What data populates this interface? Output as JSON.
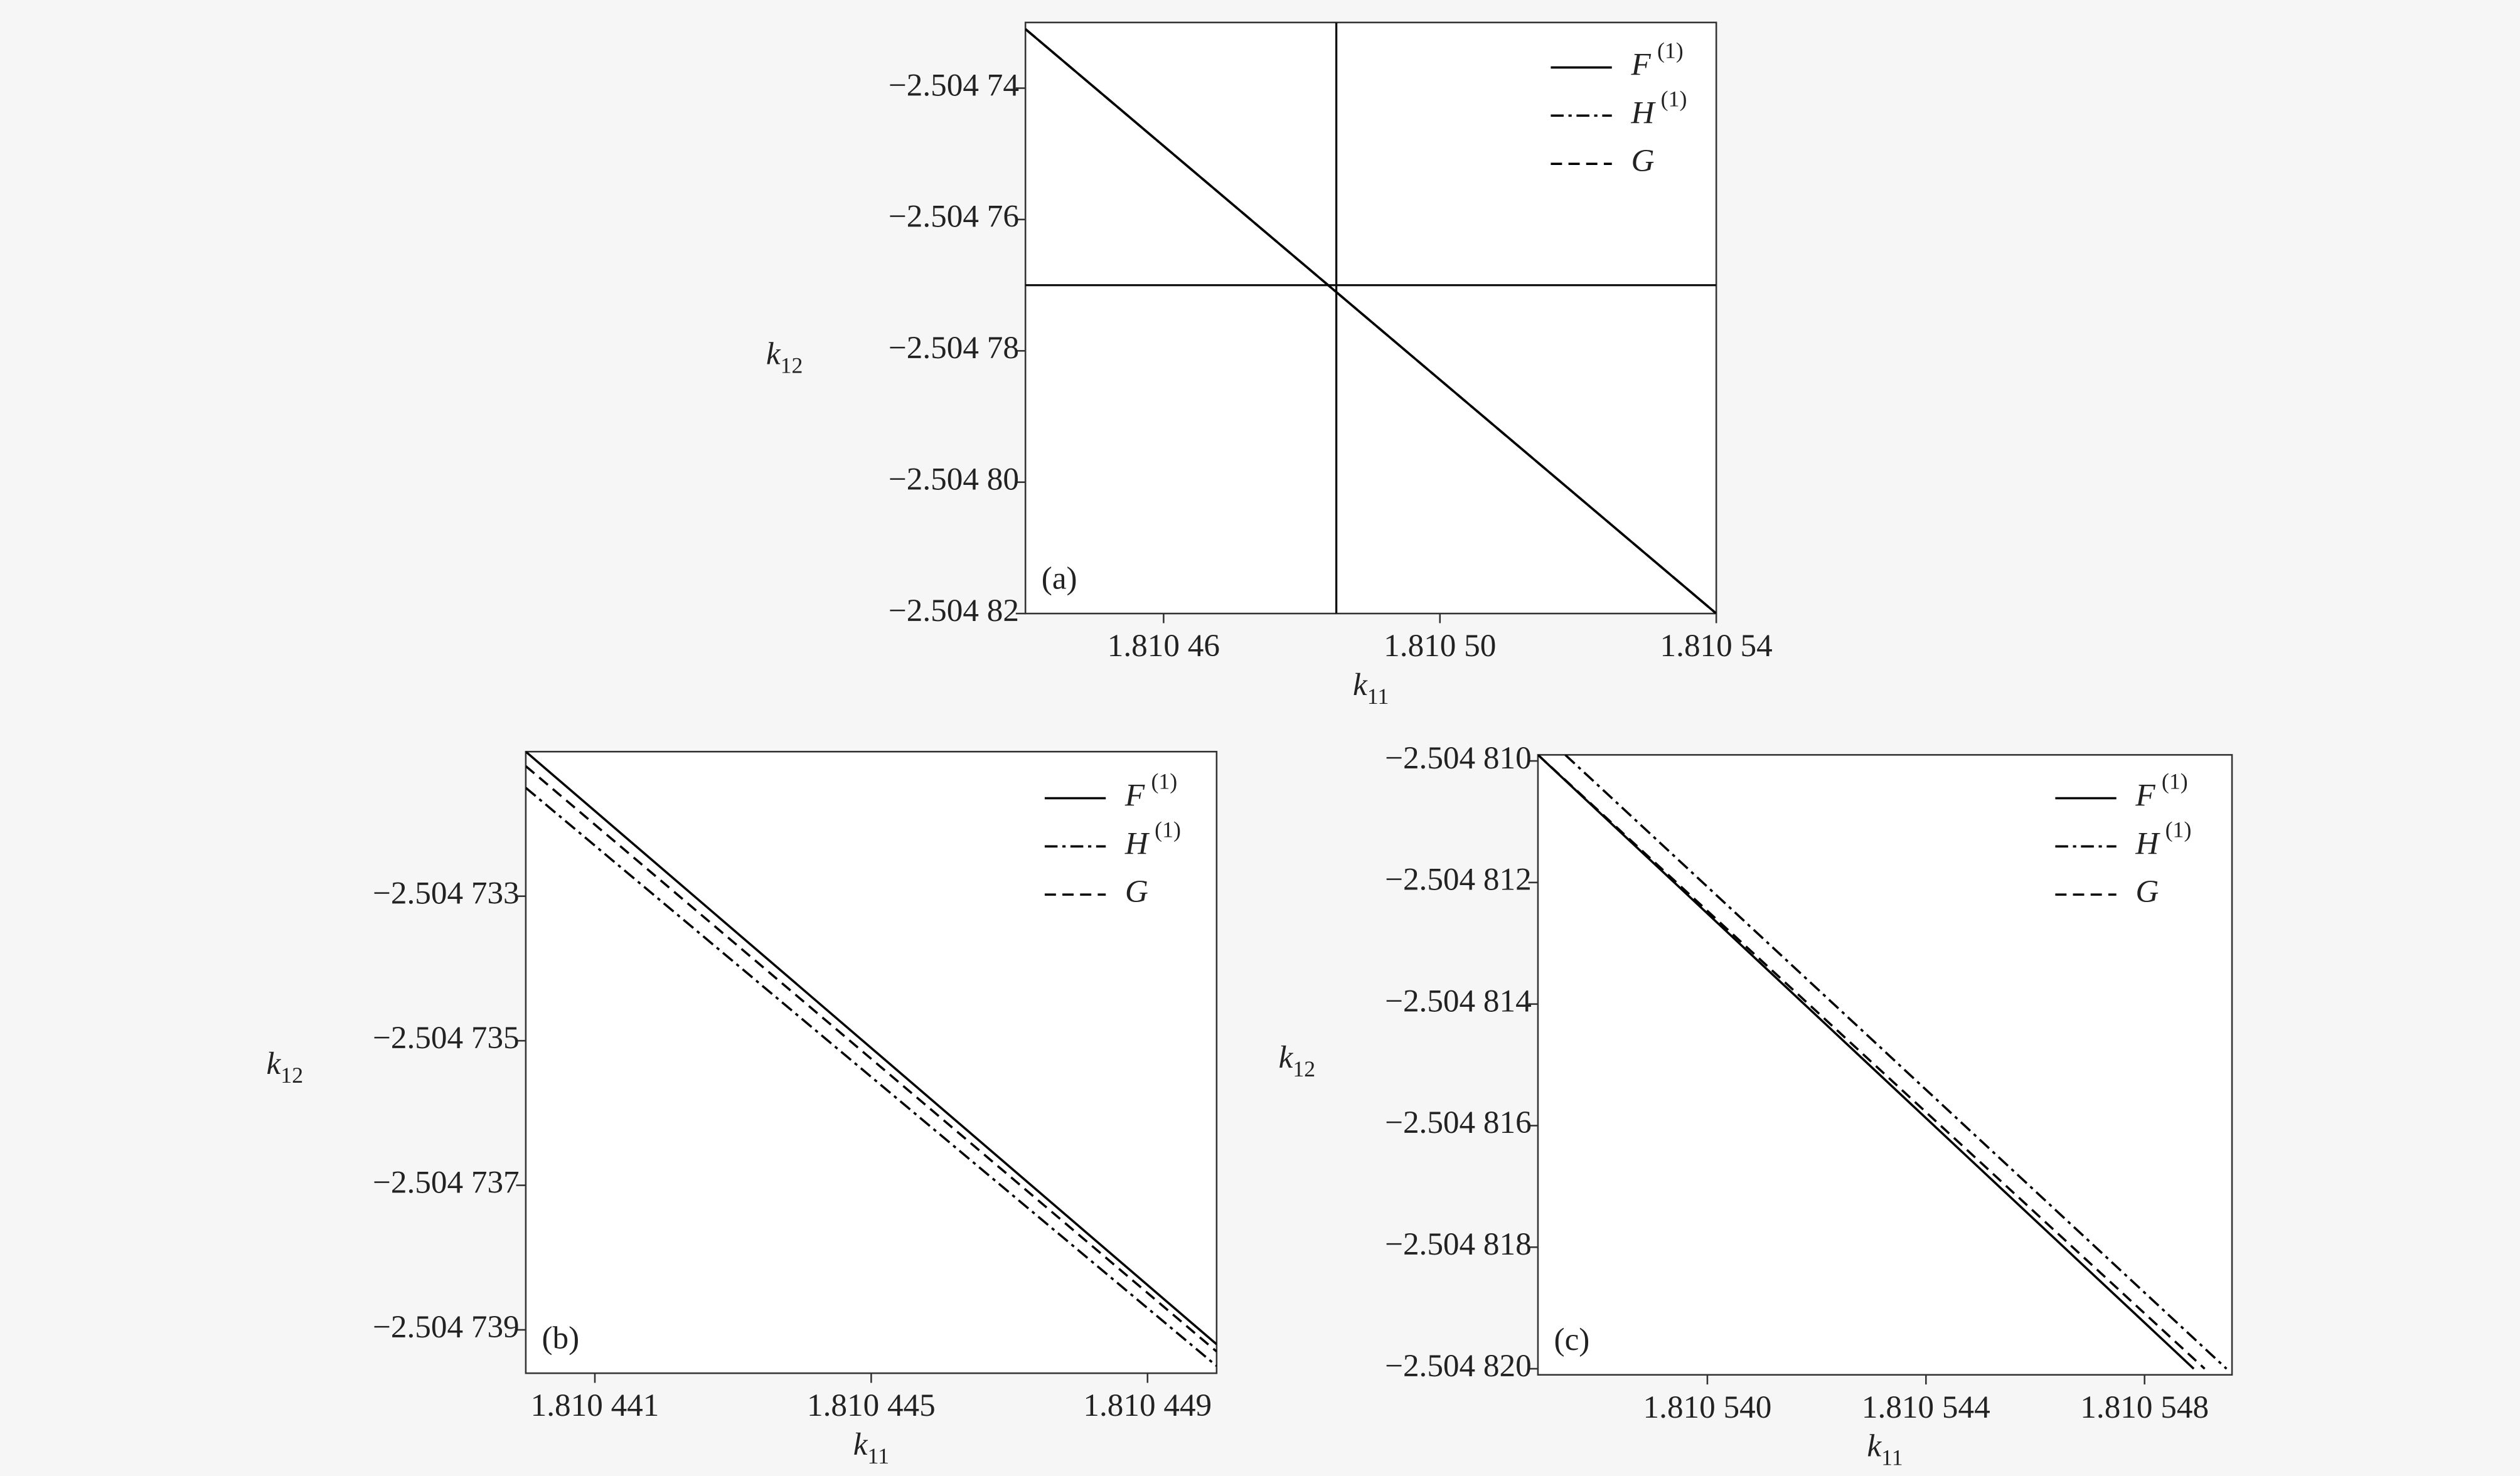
{
  "chart_data": [
    {
      "type": "line",
      "panel_label": "(a)",
      "x_label": "k",
      "x_label_sub": "11",
      "y_label": "k",
      "y_label_sub": "12",
      "xlim": [
        1.81044,
        1.81054
      ],
      "xticks": [
        {
          "value": 1.81046,
          "label": "1.810 46"
        },
        {
          "value": 1.8105,
          "label": "1.810 50"
        },
        {
          "value": 1.81054,
          "label": "1.810 54"
        }
      ],
      "ylim": [
        -2.50482,
        -2.50473
      ],
      "yticks": [
        {
          "value": -2.50474,
          "label": "−2.504 74"
        },
        {
          "value": -2.50476,
          "label": "−2.504 76"
        },
        {
          "value": -2.50478,
          "label": "−2.504 78"
        },
        {
          "value": -2.5048,
          "label": "−2.504 80"
        },
        {
          "value": -2.50482,
          "label": "−2.504 82"
        }
      ],
      "vlines": [
        1.810485
      ],
      "hlines": [
        -2.50477
      ],
      "legend": "upper right",
      "series": [
        {
          "name": "F",
          "name_sup": "(1)",
          "color": "#000000",
          "dash": "solid",
          "x": [
            1.81044,
            1.81054
          ],
          "values": [
            -2.504731,
            -2.50482
          ]
        },
        {
          "name": "H",
          "name_sup": "(1)",
          "color": "#000000",
          "dash": "dashdot",
          "x": [
            1.81044,
            1.81054
          ],
          "values": [
            -2.504731,
            -2.50482
          ]
        },
        {
          "name": "G",
          "color": "#000000",
          "dash": "dashed",
          "x": [
            1.81044,
            1.81054
          ],
          "values": [
            -2.504731,
            -2.50482
          ]
        }
      ]
    },
    {
      "type": "line",
      "panel_label": "(b)",
      "x_label": "k",
      "x_label_sub": "11",
      "y_label": "k",
      "y_label_sub": "12",
      "xlim": [
        1.81044,
        1.81045
      ],
      "xticks": [
        {
          "value": 1.810441,
          "label": "1.810 441"
        },
        {
          "value": 1.810445,
          "label": "1.810 445"
        },
        {
          "value": 1.810449,
          "label": "1.810 449"
        }
      ],
      "ylim": [
        -2.5047396,
        -2.504731
      ],
      "yticks": [
        {
          "value": -2.504733,
          "label": "−2.504 733"
        },
        {
          "value": -2.504735,
          "label": "−2.504 735"
        },
        {
          "value": -2.504737,
          "label": "−2.504 737"
        },
        {
          "value": -2.504739,
          "label": "−2.504 739"
        }
      ],
      "legend": "upper right",
      "series": [
        {
          "name": "F",
          "name_sup": "(1)",
          "color": "#000000",
          "dash": "solid",
          "x": [
            1.81044,
            1.81045
          ],
          "values": [
            -2.504731,
            -2.5047392
          ]
        },
        {
          "name": "H",
          "name_sup": "(1)",
          "color": "#000000",
          "dash": "dashdot",
          "x": [
            1.81044,
            1.81045
          ],
          "values": [
            -2.5047315,
            -2.5047395
          ]
        },
        {
          "name": "G",
          "color": "#000000",
          "dash": "dashed",
          "x": [
            1.81044,
            1.81045
          ],
          "values": [
            -2.5047312,
            -2.5047393
          ]
        }
      ]
    },
    {
      "type": "line",
      "panel_label": "(c)",
      "x_label": "k",
      "x_label_sub": "11",
      "y_label": "k",
      "y_label_sub": "12",
      "xlim": [
        1.8105369,
        1.8105496
      ],
      "xticks": [
        {
          "value": 1.81054,
          "label": "1.810 540"
        },
        {
          "value": 1.810544,
          "label": "1.810 544"
        },
        {
          "value": 1.810548,
          "label": "1.810 548"
        }
      ],
      "ylim": [
        -2.5048201,
        -2.5048099
      ],
      "yticks": [
        {
          "value": -2.50481,
          "label": "−2.504 810"
        },
        {
          "value": -2.504812,
          "label": "−2.504 812"
        },
        {
          "value": -2.504814,
          "label": "−2.504 814"
        },
        {
          "value": -2.504816,
          "label": "−2.504 816"
        },
        {
          "value": -2.504818,
          "label": "−2.504 818"
        },
        {
          "value": -2.50482,
          "label": "−2.504 820"
        }
      ],
      "legend": "upper right",
      "series": [
        {
          "name": "F",
          "name_sup": "(1)",
          "color": "#000000",
          "dash": "solid",
          "x": [
            1.8105369,
            1.8105489
          ],
          "values": [
            -2.5048099,
            -2.50482
          ]
        },
        {
          "name": "H",
          "name_sup": "(1)",
          "color": "#000000",
          "dash": "dashdot",
          "x": [
            1.8105374,
            1.8105495
          ],
          "values": [
            -2.5048099,
            -2.50482
          ]
        },
        {
          "name": "G",
          "color": "#000000",
          "dash": "dashed",
          "x": [
            1.8105369,
            1.8105491
          ],
          "values": [
            -2.5048099,
            -2.50482
          ]
        }
      ]
    }
  ]
}
